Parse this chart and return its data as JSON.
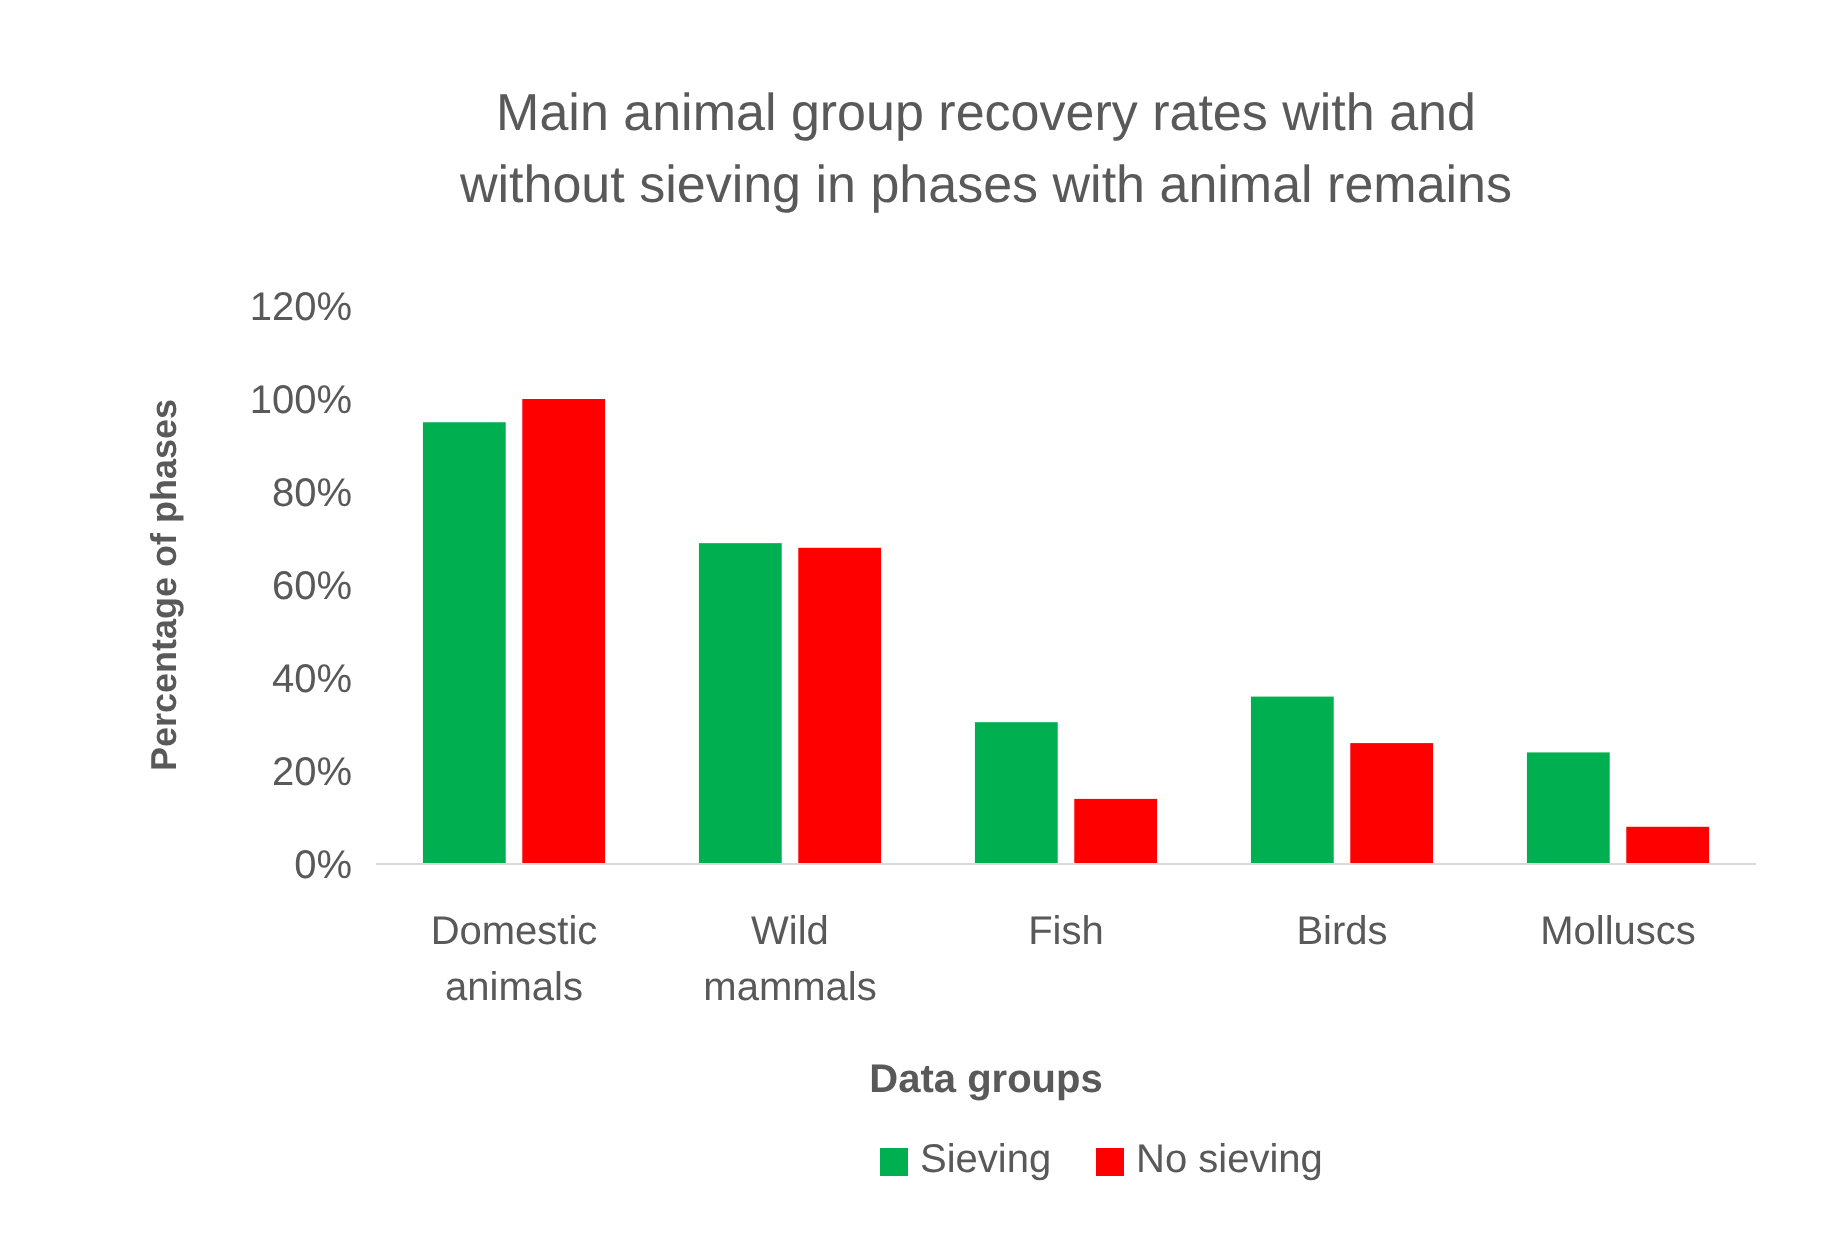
{
  "chart_data": {
    "type": "bar",
    "title": "Main animal group recovery rates with and without sieving in phases with animal remains",
    "xlabel": "Data groups",
    "ylabel": "Percentage of phases",
    "categories": [
      "Domestic animals",
      "Wild mammals",
      "Fish",
      "Birds",
      "Molluscs"
    ],
    "series": [
      {
        "name": "Sieving",
        "color": "#00b050",
        "values": [
          95,
          69,
          30.5,
          36,
          24
        ]
      },
      {
        "name": "No sieving",
        "color": "#ff0000",
        "values": [
          100,
          68,
          14,
          26,
          8
        ]
      }
    ],
    "ylim": [
      0,
      120
    ],
    "yticks": [
      {
        "value": 0,
        "label": "0%"
      },
      {
        "value": 20,
        "label": "20%"
      },
      {
        "value": 40,
        "label": "40%"
      },
      {
        "value": 60,
        "label": "60%"
      },
      {
        "value": 80,
        "label": "80%"
      },
      {
        "value": 100,
        "label": "100%"
      },
      {
        "value": 120,
        "label": "120%"
      }
    ],
    "grid": false,
    "legend": "bottom"
  }
}
